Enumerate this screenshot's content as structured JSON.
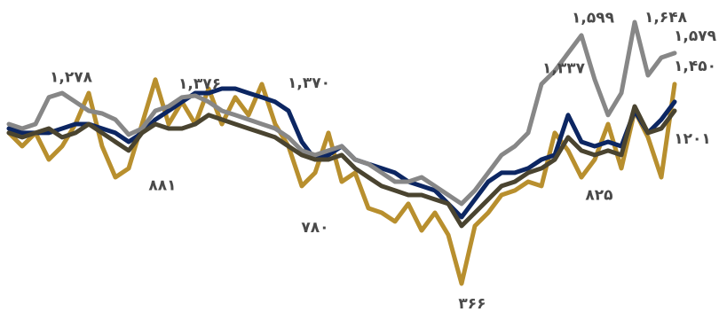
{
  "chart_data": {
    "type": "line",
    "series": [
      {
        "name": "gold",
        "color": "#b88f2e",
        "values": [
          1106,
          1040,
          1106,
          975,
          1040,
          1149,
          1301,
          1040,
          888,
          932,
          1149,
          1367,
          1149,
          1258,
          1149,
          1323,
          1149,
          1280,
          1193,
          1345,
          1149,
          1040,
          845,
          910,
          1106,
          866,
          910,
          736,
          714,
          671,
          758,
          627,
          714,
          605,
          366,
          649,
          714,
          801,
          823,
          866,
          845,
          1106,
          1019,
          888,
          975,
          1149,
          932,
          1214,
          1084,
          888,
          1345
        ]
      },
      {
        "name": "navy",
        "color": "#0c2662",
        "values": [
          1127,
          1106,
          1106,
          1106,
          1127,
          1149,
          1149,
          1127,
          1106,
          1062,
          1106,
          1171,
          1214,
          1258,
          1301,
          1301,
          1323,
          1323,
          1301,
          1280,
          1258,
          1214,
          1062,
          975,
          997,
          1040,
          975,
          953,
          932,
          910,
          866,
          845,
          823,
          758,
          692,
          779,
          866,
          910,
          910,
          932,
          975,
          997,
          1193,
          1062,
          1040,
          1062,
          1040,
          1214,
          1106,
          1171,
          1258
        ]
      },
      {
        "name": "gray",
        "color": "#878787",
        "values": [
          1149,
          1127,
          1149,
          1280,
          1301,
          1258,
          1214,
          1201,
          1171,
          1097,
          1127,
          1214,
          1236,
          1280,
          1288,
          1258,
          1214,
          1193,
          1171,
          1149,
          1127,
          1084,
          1019,
          997,
          1019,
          1040,
          975,
          953,
          910,
          866,
          866,
          888,
          845,
          801,
          758,
          823,
          910,
          997,
          1040,
          1106,
          1345,
          1410,
          1497,
          1584,
          1367,
          1193,
          1301,
          1649,
          1388,
          1475,
          1497
        ]
      },
      {
        "name": "olive",
        "color": "#4a4430",
        "values": [
          1106,
          1084,
          1106,
          1127,
          1084,
          1106,
          1149,
          1106,
          1062,
          1019,
          1106,
          1149,
          1127,
          1127,
          1149,
          1193,
          1171,
          1149,
          1127,
          1106,
          1084,
          1040,
          997,
          975,
          975,
          997,
          932,
          888,
          845,
          823,
          801,
          801,
          779,
          758,
          649,
          714,
          779,
          845,
          866,
          910,
          932,
          975,
          1084,
          1019,
          997,
          1019,
          997,
          1236,
          1106,
          1127,
          1214
        ]
      }
    ],
    "annotations": [
      {
        "label": "۱,۲۷۸",
        "value": 1278
      },
      {
        "label": "۱,۳۷۶",
        "value": 1376
      },
      {
        "label": "۱,۳۷۰",
        "value": 1370
      },
      {
        "label": "۸۸۱",
        "value": 881
      },
      {
        "label": "۷۸۰",
        "value": 780
      },
      {
        "label": "۳۶۶",
        "value": 366
      },
      {
        "label": "۱,۳۳۷",
        "value": 1337
      },
      {
        "label": "۱,۵۹۹",
        "value": 1599
      },
      {
        "label": "۱,۶۴۸",
        "value": 1648
      },
      {
        "label": "۱,۵۷۹",
        "value": 1579
      },
      {
        "label": "۱,۴۵۰",
        "value": 1450
      },
      {
        "label": "۸۲۵",
        "value": 825
      },
      {
        "label": "۱۲۰۱",
        "value": 1201
      }
    ]
  }
}
